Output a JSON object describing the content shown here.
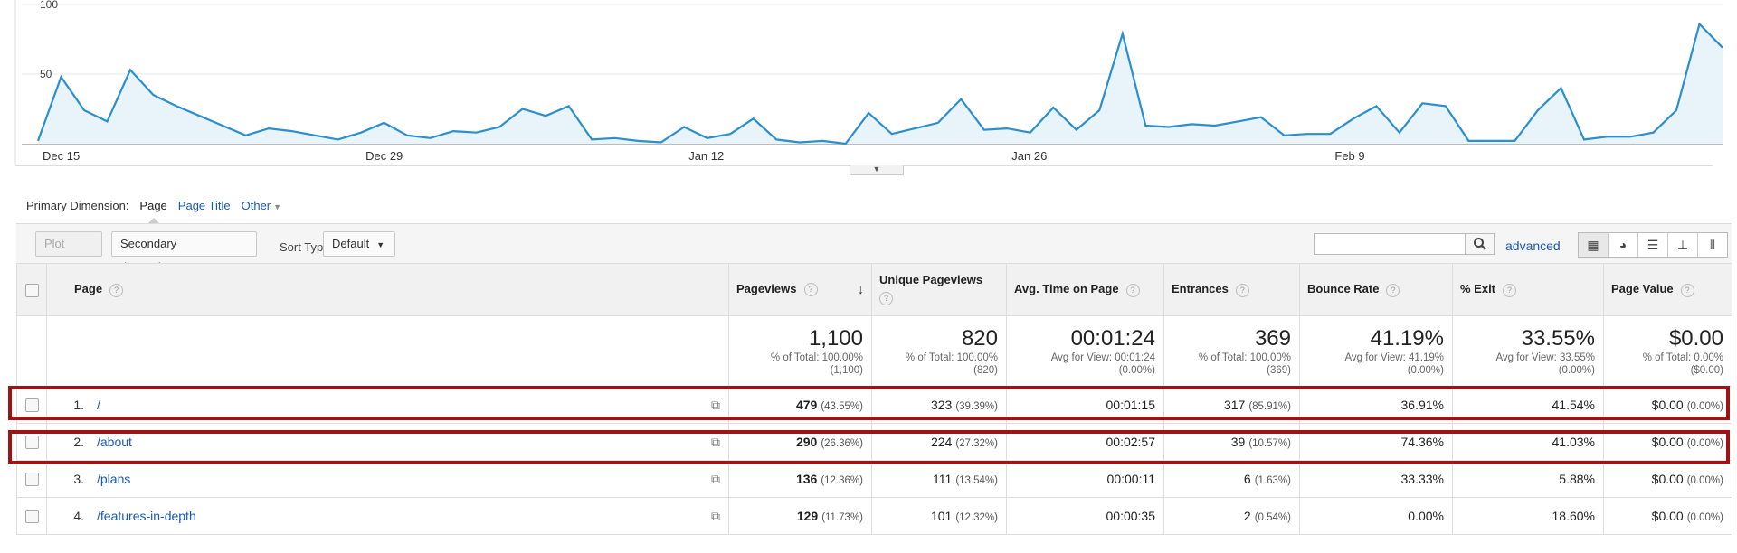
{
  "chart": {
    "y_ticks": [
      "100",
      "50"
    ],
    "x_ticks": [
      "Dec 15",
      "Dec 29",
      "Jan 12",
      "Jan 26",
      "Feb 9"
    ],
    "values": [
      2,
      48,
      24,
      16,
      53,
      35,
      27,
      20,
      13,
      6,
      11,
      9,
      6,
      3,
      8,
      15,
      6,
      4,
      9,
      8,
      12,
      25,
      20,
      27,
      3,
      4,
      2,
      1,
      12,
      4,
      7,
      18,
      3,
      1,
      2,
      0,
      22,
      7,
      11,
      15,
      32,
      10,
      11,
      8,
      26,
      10,
      24,
      79,
      13,
      12,
      14,
      13,
      16,
      19,
      6,
      7,
      7,
      18,
      27,
      8,
      29,
      27,
      2,
      2,
      2,
      24,
      40,
      3,
      5,
      5,
      8,
      24,
      86,
      69
    ]
  },
  "collapse_icon": "chevron-down-icon",
  "primary_dimension": {
    "label": "Primary Dimension:",
    "active": "Page",
    "options": [
      "Page Title",
      "Other"
    ]
  },
  "toolbar": {
    "plot_rows": "Plot Rows",
    "secondary_dimension": "Secondary dimension",
    "sort_type_label": "Sort Type:",
    "sort_type_value": "Default",
    "search_value": "",
    "advanced": "advanced",
    "view_icons": [
      "table-view-icon",
      "pie-view-icon",
      "bar-view-icon",
      "comparison-view-icon",
      "pivot-view-icon"
    ]
  },
  "table": {
    "headers": {
      "page": "Page",
      "pageviews": "Pageviews",
      "unique": "Unique Pageviews",
      "avg_time": "Avg. Time on Page",
      "entrances": "Entrances",
      "bounce": "Bounce Rate",
      "exit": "% Exit",
      "value": "Page Value"
    },
    "help_mark": "?",
    "sort_arrow": "↓",
    "totals": {
      "pageviews": {
        "big": "1,100",
        "sub1": "% of Total: 100.00%",
        "sub2": "(1,100)"
      },
      "unique": {
        "big": "820",
        "sub1": "% of Total: 100.00%",
        "sub2": "(820)"
      },
      "avg_time": {
        "big": "00:01:24",
        "sub1": "Avg for View: 00:01:24",
        "sub2": "(0.00%)"
      },
      "entrances": {
        "big": "369",
        "sub1": "% of Total: 100.00%",
        "sub2": "(369)"
      },
      "bounce": {
        "big": "41.19%",
        "sub1": "Avg for View: 41.19%",
        "sub2": "(0.00%)"
      },
      "exit": {
        "big": "33.55%",
        "sub1": "Avg for View: 33.55%",
        "sub2": "(0.00%)"
      },
      "value": {
        "big": "$0.00",
        "sub1": "% of Total: 0.00%",
        "sub2": "($0.00)"
      }
    },
    "rows": [
      {
        "rank": "1.",
        "page": "/",
        "pageviews": "479",
        "pageviews_pct": "(43.55%)",
        "unique": "323",
        "unique_pct": "(39.39%)",
        "avg_time": "00:01:15",
        "entrances": "317",
        "entrances_pct": "(85.91%)",
        "bounce": "36.91%",
        "exit": "41.54%",
        "value": "$0.00",
        "value_pct": "(0.00%)"
      },
      {
        "rank": "2.",
        "page": "/about",
        "pageviews": "290",
        "pageviews_pct": "(26.36%)",
        "unique": "224",
        "unique_pct": "(27.32%)",
        "avg_time": "00:02:57",
        "entrances": "39",
        "entrances_pct": "(10.57%)",
        "bounce": "74.36%",
        "exit": "41.03%",
        "value": "$0.00",
        "value_pct": "(0.00%)"
      },
      {
        "rank": "3.",
        "page": "/plans",
        "pageviews": "136",
        "pageviews_pct": "(12.36%)",
        "unique": "111",
        "unique_pct": "(13.54%)",
        "avg_time": "00:00:11",
        "entrances": "6",
        "entrances_pct": "(1.63%)",
        "bounce": "33.33%",
        "exit": "5.88%",
        "value": "$0.00",
        "value_pct": "(0.00%)"
      },
      {
        "rank": "4.",
        "page": "/features-in-depth",
        "pageviews": "129",
        "pageviews_pct": "(11.73%)",
        "unique": "101",
        "unique_pct": "(12.32%)",
        "avg_time": "00:00:35",
        "entrances": "2",
        "entrances_pct": "(0.54%)",
        "bounce": "0.00%",
        "exit": "18.60%",
        "value": "$0.00",
        "value_pct": "(0.00%)"
      }
    ]
  },
  "colors": {
    "line": "#2a8ecf",
    "area": "#e8f3fa",
    "link": "#1a58b6",
    "highlight": "#9e1313"
  }
}
